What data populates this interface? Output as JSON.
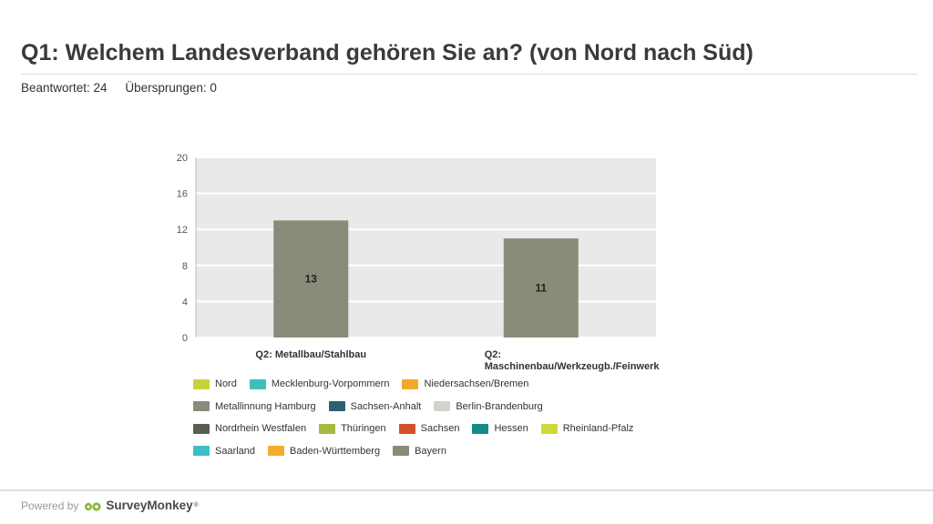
{
  "header": {
    "title": "Q1: Welchem Landesverband gehören Sie an? (von Nord nach Süd)",
    "answered": "Beantwortet: 24",
    "skipped": "Übersprungen: 0"
  },
  "chart_data": {
    "type": "bar",
    "categories": [
      "Q2: Metallbau/Stahlbau",
      "Q2: Maschinenbau/Werkzeugb./Feinwerk"
    ],
    "category_lines": [
      [
        "Q2: Metallbau/Stahlbau"
      ],
      [
        "Q2:",
        "Maschinenbau/Werkzeugb./Feinwerk"
      ]
    ],
    "values": [
      13,
      11
    ],
    "data_labels": [
      "13",
      "11"
    ],
    "ylim": [
      0,
      20
    ],
    "yticks": [
      0,
      4,
      8,
      12,
      16,
      20
    ],
    "bar_color": "#8b8b7a",
    "plot_background": "#e9e9e9",
    "grid": true,
    "legend_placement": "bottom",
    "legend": [
      [
        {
          "name": "Nord",
          "color": "#c8d33a"
        },
        {
          "name": "Mecklenburg-Vorpommern",
          "color": "#3ebfbf"
        },
        {
          "name": "Niedersachsen/Bremen",
          "color": "#f2a928"
        }
      ],
      [
        {
          "name": "Metallinnung Hamburg",
          "color": "#8b8b7a"
        },
        {
          "name": "Sachsen-Anhalt",
          "color": "#2d5f73"
        },
        {
          "name": "Berlin-Brandenburg",
          "color": "#d3d3cb"
        }
      ],
      [
        {
          "name": "Nordrhein Westfalen",
          "color": "#5d5d4f"
        },
        {
          "name": "Thüringen",
          "color": "#a5bb3f"
        },
        {
          "name": "Sachsen",
          "color": "#d2532a"
        },
        {
          "name": "Hessen",
          "color": "#148b87"
        },
        {
          "name": "Rheinland-Pfalz",
          "color": "#cfd83a"
        }
      ],
      [
        {
          "name": "Saarland",
          "color": "#3ebfc5"
        },
        {
          "name": "Baden-Württemberg",
          "color": "#f4ad2a"
        },
        {
          "name": "Bayern",
          "color": "#8b8b7a"
        }
      ]
    ]
  },
  "footer": {
    "powered_by": "Powered by",
    "brand": "SurveyMonkey",
    "trademark": "®",
    "brand_color": "#8ab838"
  }
}
